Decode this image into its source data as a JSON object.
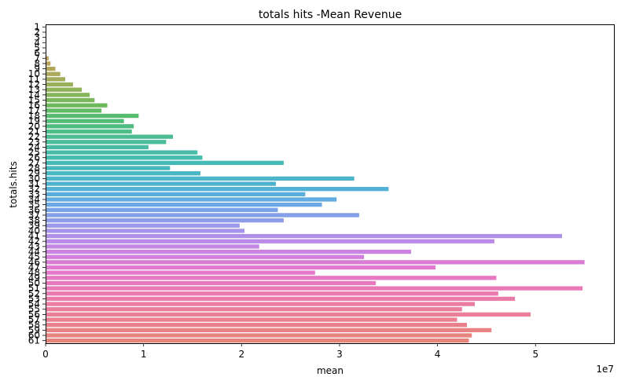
{
  "chart_data": {
    "type": "bar",
    "orientation": "horizontal",
    "title": "totals hits -Mean Revenue",
    "xlabel": "mean",
    "ylabel": "totals.hits",
    "x_offset_label": "1e7",
    "xlim": [
      0,
      5.8
    ],
    "x_ticks": [
      0,
      1,
      2,
      3,
      4,
      5
    ],
    "x_unit_multiplier": 10000000,
    "grid": false,
    "categories": [
      "1",
      "2",
      "3",
      "4",
      "5",
      "6",
      "7",
      "8",
      "9",
      "10",
      "11",
      "12",
      "13",
      "14",
      "15",
      "16",
      "17",
      "18",
      "19",
      "20",
      "21",
      "22",
      "23",
      "24",
      "25",
      "26",
      "27",
      "28",
      "29",
      "30",
      "31",
      "32",
      "33",
      "34",
      "35",
      "36",
      "37",
      "38",
      "39",
      "40",
      "41",
      "42",
      "43",
      "44",
      "45",
      "46",
      "47",
      "48",
      "49",
      "50",
      "51",
      "52",
      "53",
      "54",
      "55",
      "56",
      "57",
      "58",
      "59",
      "60",
      "61"
    ],
    "values": [
      0,
      0,
      0,
      0,
      0,
      0,
      0.03,
      0.05,
      0.1,
      0.15,
      0.2,
      0.28,
      0.37,
      0.45,
      0.5,
      0.63,
      0.57,
      0.95,
      0.8,
      0.9,
      0.88,
      1.3,
      1.23,
      1.05,
      1.55,
      1.6,
      2.43,
      1.27,
      1.58,
      3.15,
      2.35,
      3.5,
      2.65,
      2.97,
      2.82,
      2.37,
      3.2,
      2.43,
      1.98,
      2.03,
      5.27,
      4.58,
      2.18,
      3.73,
      3.25,
      5.5,
      3.98,
      2.75,
      4.6,
      3.37,
      5.48,
      4.62,
      4.79,
      4.38,
      4.25,
      4.95,
      4.2,
      4.3,
      4.55,
      4.35,
      4.32
    ],
    "colors": [
      "#e6858c",
      "#e48a68",
      "#e08f59",
      "#d9945a",
      "#d2985a",
      "#ca9c5a",
      "#c3a05a",
      "#bba35a",
      "#b3a65a",
      "#aba95a",
      "#a3ac5a",
      "#9aaf5a",
      "#90b25a",
      "#86b55a",
      "#7ab75a",
      "#6db95c",
      "#60bb64",
      "#58bc6e",
      "#52bc78",
      "#4fbd81",
      "#4dbd8a",
      "#4cbd92",
      "#4abd9a",
      "#48bca2",
      "#47bca9",
      "#46bbb0",
      "#46bab7",
      "#47b8bd",
      "#49b7c4",
      "#4cb5ca",
      "#4fb3d0",
      "#54b1d6",
      "#5baedb",
      "#63abe0",
      "#6da7e4",
      "#78a4e7",
      "#84a0e9",
      "#8f9cea",
      "#9a98ea",
      "#a594ea",
      "#b08fe9",
      "#b98ae7",
      "#c386e4",
      "#cb82e0",
      "#d37fdb",
      "#d97cd6",
      "#df7ad1",
      "#e478cb",
      "#e778c4",
      "#e979bd",
      "#ea7ab7",
      "#ea7bb1",
      "#ea7ca9",
      "#eb7da3",
      "#eb7e9d",
      "#eb7f97",
      "#ea8090",
      "#ea818a",
      "#e98285",
      "#e88380",
      "#e7847b"
    ]
  }
}
